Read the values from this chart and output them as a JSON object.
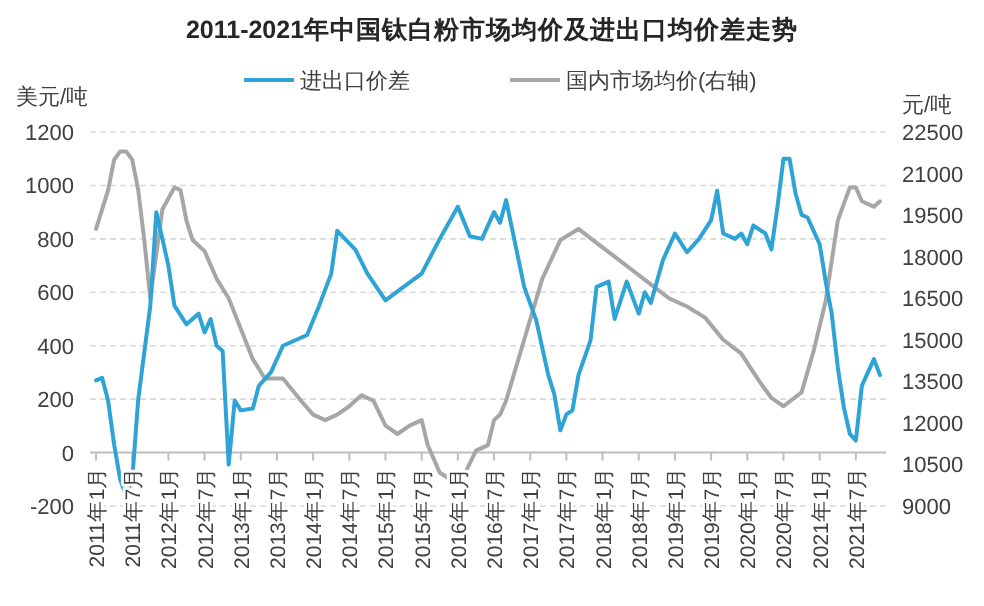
{
  "chart_data": {
    "type": "line",
    "title": "2011-2021年中国钛白粉市场均价及进出口均价差走势",
    "ylabel": "美元/吨",
    "y2label": "元/吨",
    "xlim": [
      "2010-12",
      "2021-12"
    ],
    "ylim": [
      -200,
      1200
    ],
    "yticks": [
      -200,
      0,
      200,
      400,
      600,
      800,
      1000,
      1200
    ],
    "y2lim": [
      9000,
      22500
    ],
    "y2ticks": [
      9000,
      10500,
      12000,
      13500,
      15000,
      16500,
      18000,
      19500,
      21000,
      22500
    ],
    "xticks": [
      {
        "value": "2011-01",
        "label": "2011年1月"
      },
      {
        "value": "2011-07",
        "label": "2011年7月"
      },
      {
        "value": "2012-01",
        "label": "2012年1月"
      },
      {
        "value": "2012-07",
        "label": "2012年7月"
      },
      {
        "value": "2013-01",
        "label": "2013年1月"
      },
      {
        "value": "2013-07",
        "label": "2013年7月"
      },
      {
        "value": "2014-01",
        "label": "2014年1月"
      },
      {
        "value": "2014-07",
        "label": "2014年7月"
      },
      {
        "value": "2015-01",
        "label": "2015年1月"
      },
      {
        "value": "2015-07",
        "label": "2015年7月"
      },
      {
        "value": "2016-01",
        "label": "2016年1月"
      },
      {
        "value": "2016-07",
        "label": "2016年7月"
      },
      {
        "value": "2017-01",
        "label": "2017年1月"
      },
      {
        "value": "2017-07",
        "label": "2017年7月"
      },
      {
        "value": "2018-01",
        "label": "2018年1月"
      },
      {
        "value": "2018-07",
        "label": "2018年7月"
      },
      {
        "value": "2019-01",
        "label": "2019年1月"
      },
      {
        "value": "2019-07",
        "label": "2019年7月"
      },
      {
        "value": "2020-01",
        "label": "2020年1月"
      },
      {
        "value": "2020-07",
        "label": "2020年7月"
      },
      {
        "value": "2021-01",
        "label": "2021年1月"
      },
      {
        "value": "2021-07",
        "label": "2021年7月"
      }
    ],
    "grid": "y",
    "legend": "top",
    "marker": "none",
    "series": [
      {
        "name": "进出口价差",
        "color": "#2ea3d5",
        "x": [
          "2011-01",
          "2011-02",
          "2011-03",
          "2011-04",
          "2011-05",
          "2011-06",
          "2011-07",
          "2011-08",
          "2011-10",
          "2011-11",
          "2012-01",
          "2012-02",
          "2012-04",
          "2012-06",
          "2012-07",
          "2012-08",
          "2012-09",
          "2012-10",
          "2012-11",
          "2012-12",
          "2013-01",
          "2013-03",
          "2013-04",
          "2013-06",
          "2013-08",
          "2013-12",
          "2014-02",
          "2014-04",
          "2014-05",
          "2014-08",
          "2014-10",
          "2015-01",
          "2015-04",
          "2015-07",
          "2015-10",
          "2016-01",
          "2016-03",
          "2016-05",
          "2016-07",
          "2016-08",
          "2016-09",
          "2016-12",
          "2017-02",
          "2017-04",
          "2017-05",
          "2017-06",
          "2017-07",
          "2017-08",
          "2017-09",
          "2017-11",
          "2017-12",
          "2018-02",
          "2018-03",
          "2018-05",
          "2018-07",
          "2018-08",
          "2018-09",
          "2018-11",
          "2019-01",
          "2019-03",
          "2019-05",
          "2019-07",
          "2019-08",
          "2019-09",
          "2019-11",
          "2019-12",
          "2020-01",
          "2020-02",
          "2020-04",
          "2020-05",
          "2020-06",
          "2020-07",
          "2020-08",
          "2020-09",
          "2020-10",
          "2020-11",
          "2021-01",
          "2021-02",
          "2021-03",
          "2021-04",
          "2021-05",
          "2021-06",
          "2021-07",
          "2021-08",
          "2021-09",
          "2021-10",
          "2021-11"
        ],
        "values": [
          270,
          280,
          195,
          30,
          -100,
          -165,
          -100,
          200,
          550,
          900,
          700,
          550,
          480,
          520,
          450,
          500,
          400,
          380,
          -45,
          195,
          158,
          165,
          250,
          300,
          400,
          440,
          550,
          670,
          830,
          760,
          670,
          570,
          620,
          670,
          800,
          920,
          810,
          800,
          900,
          860,
          945,
          620,
          495,
          290,
          218,
          83,
          143,
          158,
          290,
          420,
          620,
          640,
          500,
          640,
          520,
          600,
          560,
          720,
          820,
          750,
          800,
          870,
          980,
          820,
          800,
          820,
          780,
          850,
          820,
          760,
          920,
          1100,
          1100,
          970,
          890,
          880,
          780,
          640,
          520,
          320,
          170,
          70,
          45,
          250,
          300,
          350,
          290
        ]
      },
      {
        "name": "国内市场均价(右轴)",
        "color": "#a6a6a6",
        "axis": "y2",
        "x": [
          "2011-01",
          "2011-02",
          "2011-03",
          "2011-04",
          "2011-05",
          "2011-06",
          "2011-07",
          "2011-08",
          "2011-09",
          "2011-10",
          "2011-12",
          "2012-02",
          "2012-03",
          "2012-04",
          "2012-05",
          "2012-07",
          "2012-09",
          "2012-11",
          "2013-01",
          "2013-03",
          "2013-05",
          "2013-08",
          "2013-11",
          "2014-01",
          "2014-03",
          "2014-05",
          "2014-07",
          "2014-09",
          "2014-11",
          "2015-01",
          "2015-03",
          "2015-05",
          "2015-07",
          "2015-08",
          "2015-10",
          "2016-01",
          "2016-02",
          "2016-04",
          "2016-06",
          "2016-07",
          "2016-08",
          "2016-09",
          "2016-12",
          "2017-03",
          "2017-06",
          "2017-09",
          "2017-12",
          "2018-03",
          "2018-06",
          "2018-09",
          "2018-12",
          "2019-03",
          "2019-06",
          "2019-09",
          "2019-12",
          "2020-03",
          "2020-05",
          "2020-07",
          "2020-10",
          "2020-12",
          "2021-02",
          "2021-04",
          "2021-06",
          "2021-07",
          "2021-08",
          "2021-10",
          "2021-11"
        ],
        "values": [
          19000,
          19700,
          20400,
          21500,
          21800,
          21800,
          21500,
          20400,
          18600,
          16500,
          19700,
          20500,
          20400,
          19300,
          18600,
          18200,
          17200,
          16500,
          15400,
          14300,
          13600,
          13600,
          12800,
          12300,
          12100,
          12300,
          12600,
          13000,
          12800,
          11900,
          11600,
          11900,
          12100,
          11200,
          10200,
          9800,
          10100,
          11000,
          11200,
          12100,
          12300,
          12800,
          15000,
          17200,
          18600,
          19000,
          18500,
          18000,
          17500,
          17000,
          16500,
          16200,
          15800,
          15000,
          14500,
          13500,
          12900,
          12600,
          13100,
          14600,
          16400,
          19300,
          20500,
          20500,
          20000,
          19800,
          20000
        ]
      }
    ]
  }
}
